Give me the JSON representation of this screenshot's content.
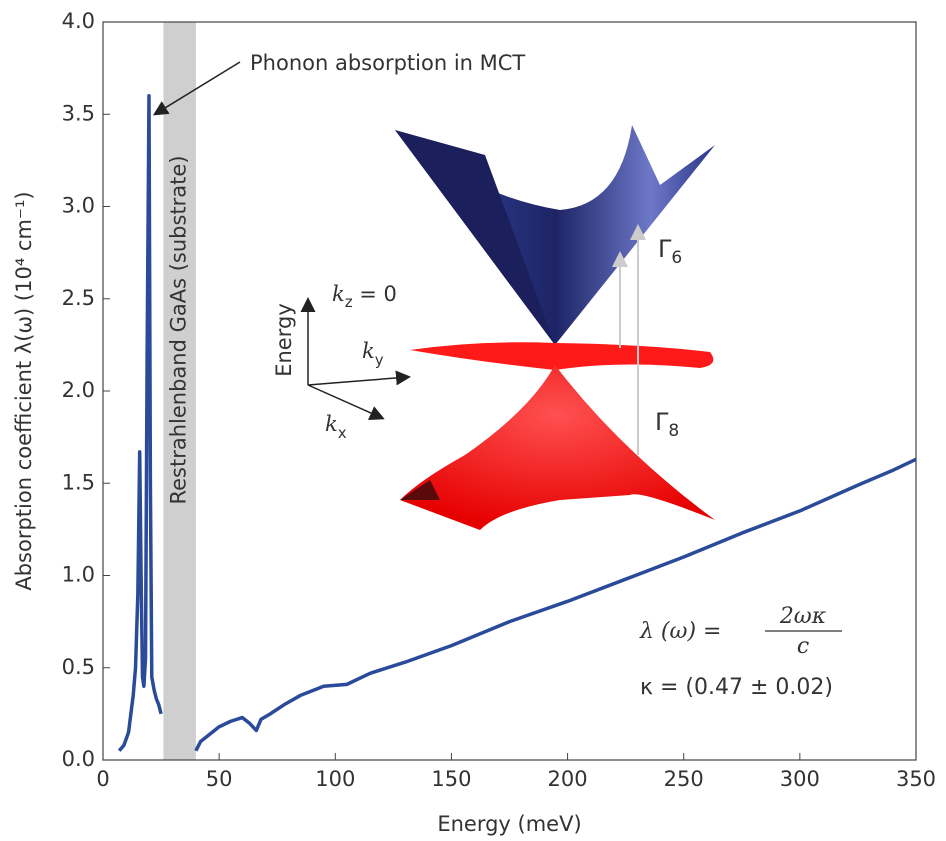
{
  "chart_data": {
    "type": "line",
    "xlabel": "Energy (meV)",
    "ylabel": "Absorption coefficient λ(ω) (10⁴ cm⁻¹)",
    "x": [
      7,
      9,
      11,
      12,
      13,
      14,
      15,
      15.8,
      16.4,
      17,
      17.6,
      18.3,
      19,
      19.8,
      20.4,
      21,
      22,
      23,
      24,
      25,
      null,
      40,
      42,
      45,
      50,
      55,
      60,
      63,
      66,
      68,
      72,
      78,
      85,
      95,
      105,
      115,
      130,
      150,
      175,
      200,
      225,
      250,
      275,
      300,
      325,
      340,
      350
    ],
    "values": [
      0.05,
      0.08,
      0.15,
      0.25,
      0.35,
      0.5,
      0.9,
      1.67,
      1.0,
      0.45,
      0.4,
      0.55,
      2.2,
      3.6,
      1.5,
      0.45,
      0.38,
      0.33,
      0.3,
      0.25,
      null,
      0.05,
      0.1,
      0.13,
      0.18,
      0.21,
      0.23,
      0.2,
      0.16,
      0.22,
      0.25,
      0.3,
      0.35,
      0.4,
      0.41,
      0.47,
      0.53,
      0.62,
      0.75,
      0.86,
      0.98,
      1.1,
      1.23,
      1.35,
      1.49,
      1.57,
      1.63
    ],
    "color": "#2a4a9a",
    "xlim": [
      0,
      350
    ],
    "xticks": [
      0,
      50,
      100,
      150,
      200,
      250,
      300,
      350
    ],
    "ylim": [
      0,
      4
    ],
    "yticks": [
      {
        "value": 0,
        "label": "0.0"
      },
      {
        "value": 0.5,
        "label": "0.5"
      },
      {
        "value": 1,
        "label": "1.0"
      },
      {
        "value": 1.5,
        "label": "1.5"
      },
      {
        "value": 2,
        "label": "2.0"
      },
      {
        "value": 2.5,
        "label": "2.5"
      },
      {
        "value": 3,
        "label": "3.0"
      },
      {
        "value": 3.5,
        "label": "3.5"
      },
      {
        "value": 4,
        "label": "4.0"
      }
    ],
    "band": {
      "range": [
        26,
        40
      ],
      "label": "Restrahlenband GaAs (substrate)",
      "color": "#cfcfcf"
    },
    "annotation": {
      "text": "Phonon absorption in MCT",
      "xy": [
        20,
        3.6
      ]
    },
    "inset": {
      "energy": "Energy",
      "kz": {
        "main": "k",
        "sub": "z",
        "tail": " = 0"
      },
      "ky": {
        "main": "k",
        "sub": "y"
      },
      "kx": {
        "main": "k",
        "sub": "x"
      },
      "gamma6": {
        "main": "Γ",
        "sub": "6"
      },
      "gamma8": {
        "main": "Γ",
        "sub": "8"
      }
    },
    "formula": {
      "lhs": "λ (ω) =",
      "numerator": "2ωκ",
      "denominator": "c",
      "kappa": "κ = (0.47 ± 0.02)"
    }
  }
}
